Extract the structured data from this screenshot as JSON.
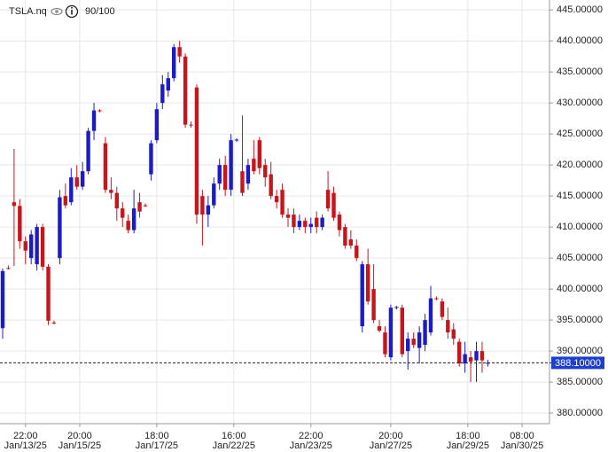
{
  "chart_data": {
    "type": "candlestick",
    "title": "TSLA.nq",
    "subtitle": "90/100",
    "up_color": "#1c1cc4",
    "down_color": "#c4161c",
    "ylim": [
      378.3,
      446.6
    ],
    "yticks": [
      {
        "value": 380,
        "label": "380.00000"
      },
      {
        "value": 385,
        "label": "385.00000"
      },
      {
        "value": 390,
        "label": "390.00000"
      },
      {
        "value": 395,
        "label": "395.00000"
      },
      {
        "value": 400,
        "label": "400.00000"
      },
      {
        "value": 405,
        "label": "405.00000"
      },
      {
        "value": 410,
        "label": "410.00000"
      },
      {
        "value": 415,
        "label": "415.00000"
      },
      {
        "value": 420,
        "label": "420.00000"
      },
      {
        "value": 425,
        "label": "425.00000"
      },
      {
        "value": 430,
        "label": "430.00000"
      },
      {
        "value": 435,
        "label": "435.00000"
      },
      {
        "value": 440,
        "label": "440.00000"
      },
      {
        "value": 445,
        "label": "445.00000"
      }
    ],
    "xticks": [
      {
        "value": 4,
        "label": "22:00",
        "date": "Jan/13/25"
      },
      {
        "value": 13.5,
        "label": "20:00",
        "date": "Jan/15/25"
      },
      {
        "value": 27,
        "label": "18:00",
        "date": "Jan/17/25"
      },
      {
        "value": 40.5,
        "label": "16:00",
        "date": "Jan/22/25"
      },
      {
        "value": 54,
        "label": "22:00",
        "date": "Jan/23/25"
      },
      {
        "value": 68,
        "label": "20:00",
        "date": "Jan/27/25"
      },
      {
        "value": 81.5,
        "label": "18:00",
        "date": "Jan/29/25"
      },
      {
        "value": 91,
        "label": "08:00",
        "date": "Jan/30/25"
      }
    ],
    "last_price": {
      "value": 388.1,
      "label": "388.10000"
    },
    "grid": true,
    "candles": [
      [
        393.7,
        403.3,
        392.0,
        402.9
      ],
      [
        403.4,
        403.8,
        403.1,
        403.3
      ],
      [
        414.0,
        422.6,
        403.7,
        413.4
      ],
      [
        413.4,
        414.5,
        406.5,
        407.7
      ],
      [
        407.7,
        408.5,
        404.0,
        406.2
      ],
      [
        405.0,
        409.5,
        404.0,
        408.8
      ],
      [
        404.0,
        410.5,
        403.0,
        410.0
      ],
      [
        410.0,
        410.5,
        403.0,
        403.6
      ],
      [
        403.6,
        404.0,
        394.2,
        394.9
      ],
      [
        394.6,
        394.9,
        394.3,
        394.5
      ],
      [
        405.0,
        416.0,
        404.0,
        414.8
      ],
      [
        415.0,
        417.0,
        413.0,
        413.5
      ],
      [
        414.0,
        419.5,
        413.5,
        418.0
      ],
      [
        418.0,
        420.0,
        416.0,
        416.5
      ],
      [
        416.5,
        420.5,
        416.0,
        419.0
      ],
      [
        419.0,
        426.0,
        418.5,
        425.5
      ],
      [
        425.5,
        430.0,
        424.0,
        428.8
      ],
      [
        428.8,
        429.0,
        428.5,
        428.7
      ],
      [
        423.5,
        424.5,
        415.5,
        416.0
      ],
      [
        416.0,
        418.0,
        414.5,
        415.5
      ],
      [
        415.5,
        416.5,
        411.0,
        413.0
      ],
      [
        413.0,
        414.0,
        410.0,
        411.5
      ],
      [
        411.0,
        412.0,
        409.0,
        409.5
      ],
      [
        409.5,
        416.0,
        409.0,
        413.0
      ],
      [
        414.0,
        415.5,
        411.5,
        412.5
      ],
      [
        413.5,
        413.8,
        413.2,
        413.4
      ],
      [
        418.5,
        424.0,
        417.5,
        423.5
      ],
      [
        424.0,
        430.0,
        423.5,
        429.0
      ],
      [
        430.0,
        434.5,
        429.0,
        433.0
      ],
      [
        432.0,
        435.0,
        431.0,
        434.0
      ],
      [
        434.0,
        439.5,
        433.5,
        439.0
      ],
      [
        439.0,
        440.0,
        436.5,
        437.5
      ],
      [
        437.5,
        438.0,
        426.0,
        426.5
      ],
      [
        426.5,
        427.0,
        426.0,
        426.4
      ],
      [
        432.5,
        433.0,
        410.5,
        412.0
      ],
      [
        415.0,
        416.0,
        407.0,
        412.0
      ],
      [
        412.0,
        415.0,
        410.0,
        413.5
      ],
      [
        413.5,
        418.0,
        413.0,
        417.0
      ],
      [
        417.0,
        421.0,
        416.0,
        420.0
      ],
      [
        420.0,
        421.5,
        415.0,
        416.0
      ],
      [
        416.0,
        425.0,
        415.0,
        424.0
      ],
      [
        424.0,
        424.3,
        423.7,
        424.1
      ],
      [
        419.0,
        428.0,
        415.0,
        415.5
      ],
      [
        417.0,
        421.0,
        416.0,
        420.0
      ],
      [
        421.0,
        424.0,
        418.5,
        419.0
      ],
      [
        424.0,
        424.5,
        418.5,
        419.5
      ],
      [
        420.0,
        421.0,
        416.5,
        418.0
      ],
      [
        418.5,
        420.5,
        414.5,
        415.0
      ],
      [
        415.0,
        416.0,
        413.0,
        414.0
      ],
      [
        416.0,
        417.0,
        411.5,
        412.0
      ],
      [
        412.0,
        413.0,
        410.0,
        411.5
      ],
      [
        412.0,
        413.0,
        409.0,
        410.0
      ],
      [
        410.0,
        412.0,
        409.5,
        411.0
      ],
      [
        411.0,
        411.5,
        409.0,
        410.0
      ],
      [
        410.0,
        411.5,
        409.0,
        410.5
      ],
      [
        411.5,
        412.5,
        409.0,
        410.0
      ],
      [
        410.0,
        412.0,
        409.5,
        411.5
      ],
      [
        416.0,
        419.0,
        412.5,
        413.0
      ],
      [
        415.5,
        416.5,
        411.0,
        411.5
      ],
      [
        412.0,
        412.5,
        408.5,
        409.5
      ],
      [
        410.0,
        410.5,
        406.5,
        407.0
      ],
      [
        408.0,
        409.5,
        406.5,
        407.0
      ],
      [
        407.0,
        408.0,
        404.5,
        405.0
      ],
      [
        394.0,
        404.5,
        393.0,
        404.0
      ],
      [
        404.0,
        406.5,
        397.5,
        398.0
      ],
      [
        400.0,
        404.0,
        394.5,
        395.0
      ],
      [
        394.0,
        395.0,
        393.0,
        393.3
      ],
      [
        393.0,
        394.0,
        389.0,
        389.5
      ],
      [
        389.0,
        397.5,
        388.5,
        397.0
      ],
      [
        397.0,
        397.3,
        396.7,
        397.1
      ],
      [
        397.0,
        397.5,
        389.0,
        389.5
      ],
      [
        390.0,
        393.0,
        387.0,
        392.0
      ],
      [
        392.0,
        393.0,
        390.5,
        391.0
      ],
      [
        390.5,
        394.0,
        388.0,
        393.0
      ],
      [
        391.0,
        396.0,
        390.0,
        395.0
      ],
      [
        393.0,
        400.5,
        392.5,
        398.5
      ],
      [
        398.5,
        398.8,
        398.2,
        398.4
      ],
      [
        398.0,
        398.5,
        395.0,
        395.5
      ],
      [
        395.0,
        397.0,
        392.0,
        393.0
      ],
      [
        393.5,
        394.5,
        391.0,
        392.0
      ],
      [
        391.5,
        392.0,
        387.5,
        388.0
      ],
      [
        388.0,
        391.5,
        386.5,
        389.5
      ],
      [
        389.0,
        390.0,
        385.0,
        388.3
      ],
      [
        388.5,
        391.5,
        385.0,
        390.0
      ],
      [
        390.0,
        391.5,
        386.5,
        388.5
      ],
      [
        388.1,
        388.6,
        387.5,
        388.1
      ]
    ]
  }
}
